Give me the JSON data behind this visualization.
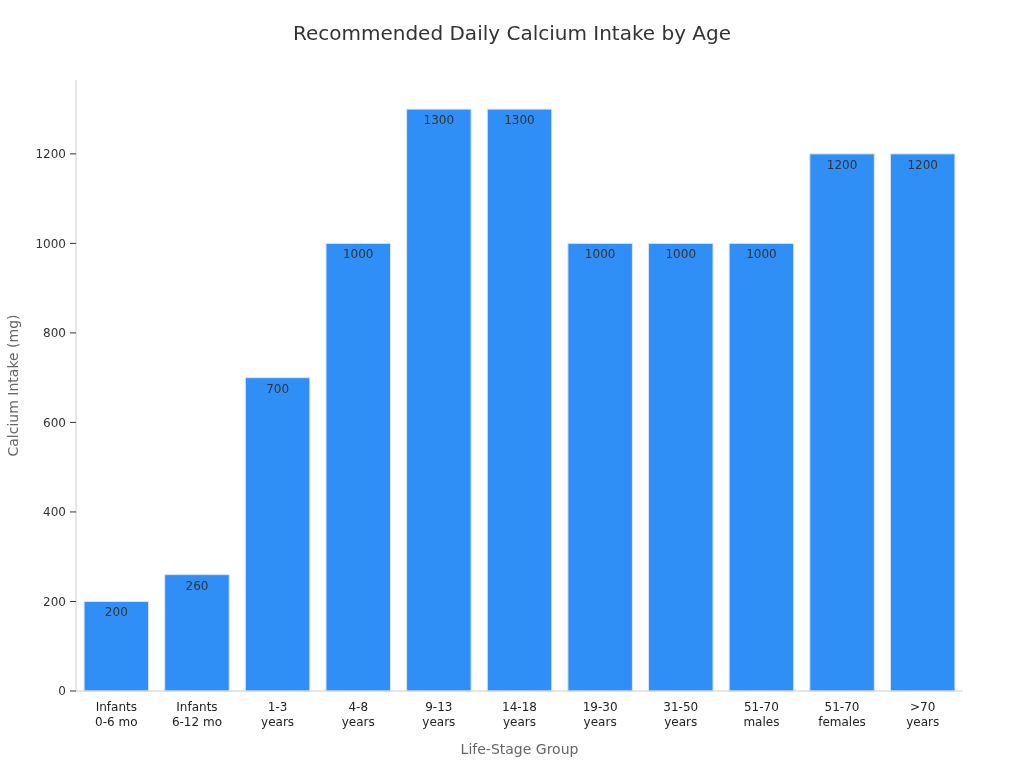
{
  "chart_data": {
    "type": "bar",
    "title": "Recommended Daily Calcium Intake by Age",
    "xlabel": "Life-Stage Group",
    "ylabel": "Calcium Intake (mg)",
    "categories": [
      "Infants 0-6 mo",
      "Infants 6-12 mo",
      "1-3 years",
      "4-8 years",
      "9-13 years",
      "14-18 years",
      "19-30 years",
      "31-50 years",
      "51-70 males",
      "51-70 females",
      ">70 years"
    ],
    "values": [
      200,
      260,
      700,
      1000,
      1300,
      1300,
      1000,
      1000,
      1000,
      1200,
      1200
    ],
    "color": "#2f8ff7",
    "ylim": [
      0,
      1365
    ],
    "yticks": [
      0,
      200,
      400,
      600,
      800,
      1000,
      1200
    ],
    "grid": false,
    "data_labels": true
  }
}
